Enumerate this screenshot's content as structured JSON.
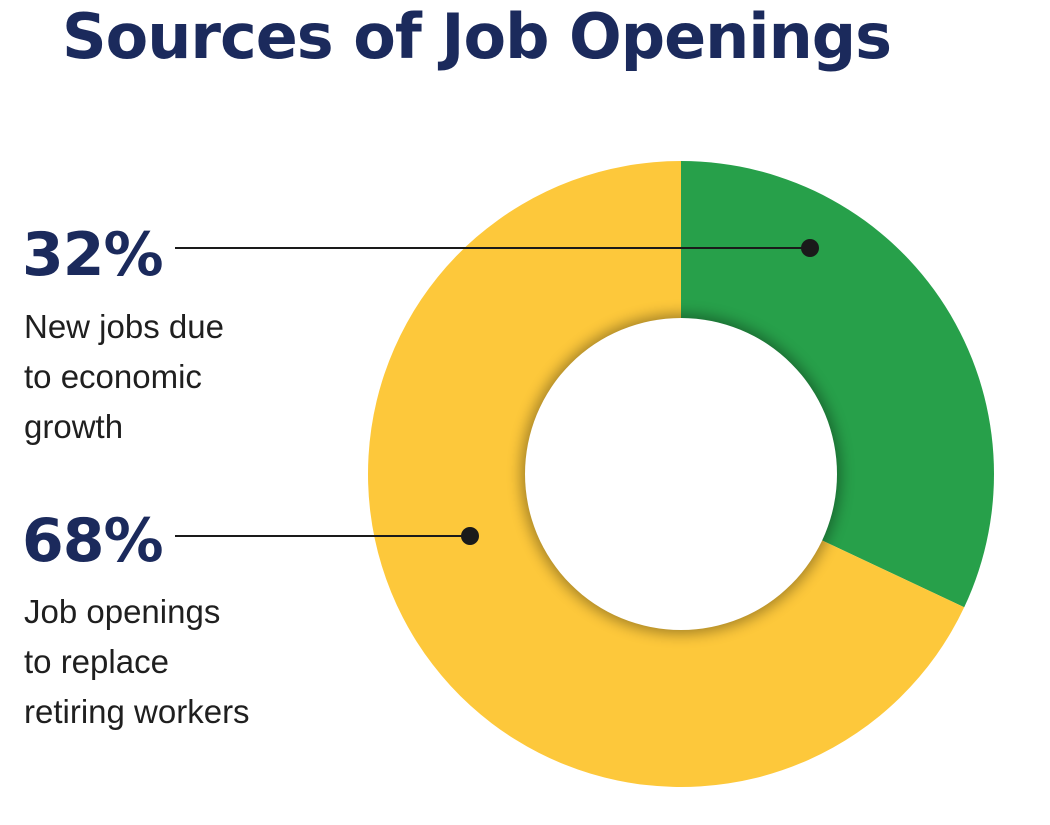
{
  "title": "Sources of Job Openings",
  "colors": {
    "title": "#1b2a5c",
    "growth": "#27a04a",
    "retiring": "#fdc83b",
    "leader": "#1a1a1a"
  },
  "chart_data": {
    "type": "pie",
    "style": "donut",
    "title": "Sources of Job Openings",
    "series": [
      {
        "label": "32%",
        "value": 32,
        "description_lines": [
          "New jobs due",
          "to economic",
          "growth"
        ],
        "color": "#27a04a"
      },
      {
        "label": "68%",
        "value": 68,
        "description_lines": [
          "Job openings",
          "to replace",
          "retiring workers"
        ],
        "color": "#fdc83b"
      }
    ]
  }
}
